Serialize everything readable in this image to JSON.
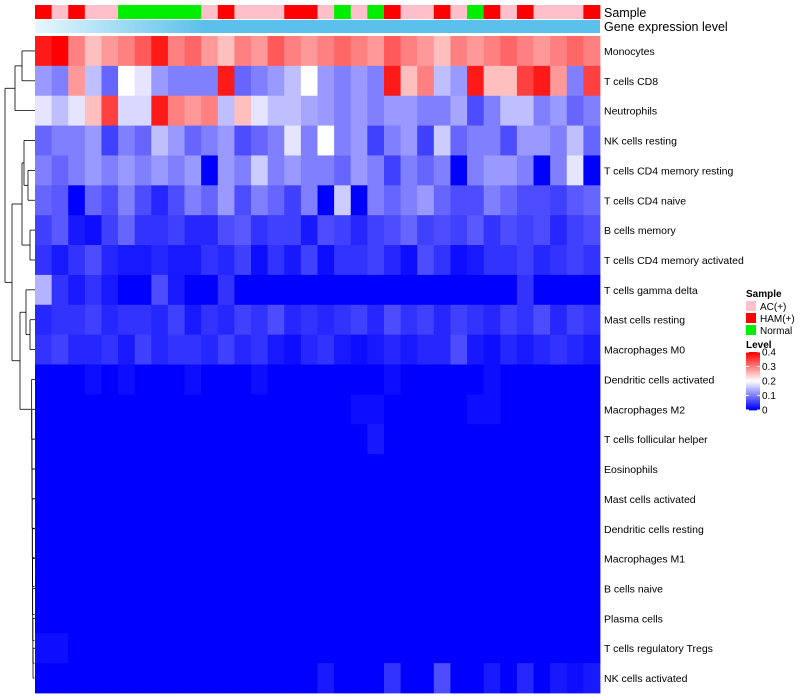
{
  "chart_data": {
    "type": "heatmap",
    "title": "",
    "column_annotation_labels": [
      "Sample",
      "Gene expression level"
    ],
    "row_labels": [
      "Monocytes",
      "T cells CD8",
      "Neutrophils",
      "NK cells resting",
      "T cells CD4 memory resting",
      "T cells CD4 naive",
      "B cells memory",
      "T cells CD4 memory activated",
      "T cells gamma delta",
      "Mast cells resting",
      "Macrophages M0",
      "Dendritic cells activated",
      "Macrophages M2",
      "T cells follicular helper",
      "Eosinophils",
      "Mast cells activated",
      "Dendritic cells resting",
      "Macrophages M1",
      "B cells naive",
      "Plasma cells",
      "T cells regulatory  Tregs",
      "NK cells activated"
    ],
    "sample_groups": [
      "HAM(+)",
      "AC(+)",
      "HAM(+)",
      "AC(+)",
      "AC(+)",
      "Normal",
      "Normal",
      "Normal",
      "Normal",
      "Normal",
      "AC(+)",
      "HAM(+)",
      "AC(+)",
      "AC(+)",
      "AC(+)",
      "HAM(+)",
      "HAM(+)",
      "AC(+)",
      "Normal",
      "AC(+)",
      "Normal",
      "HAM(+)",
      "AC(+)",
      "AC(+)",
      "HAM(+)",
      "AC(+)",
      "Normal",
      "HAM(+)",
      "AC(+)",
      "HAM(+)",
      "AC(+)",
      "AC(+)",
      "AC(+)",
      "HAM(+)"
    ],
    "values": [
      [
        0.38,
        0.4,
        0.3,
        0.25,
        0.28,
        0.3,
        0.33,
        0.38,
        0.3,
        0.32,
        0.28,
        0.25,
        0.3,
        0.28,
        0.33,
        0.3,
        0.28,
        0.3,
        0.32,
        0.3,
        0.28,
        0.33,
        0.3,
        0.28,
        0.25,
        0.3,
        0.28,
        0.3,
        0.32,
        0.3,
        0.28,
        0.3,
        0.32,
        0.3
      ],
      [
        0.12,
        0.1,
        0.28,
        0.15,
        0.08,
        0.2,
        0.18,
        0.12,
        0.1,
        0.1,
        0.1,
        0.38,
        0.08,
        0.1,
        0.12,
        0.15,
        0.2,
        0.12,
        0.1,
        0.12,
        0.1,
        0.38,
        0.25,
        0.3,
        0.15,
        0.12,
        0.38,
        0.25,
        0.25,
        0.35,
        0.38,
        0.28,
        0.1,
        0.35
      ],
      [
        0.18,
        0.15,
        0.18,
        0.25,
        0.35,
        0.17,
        0.17,
        0.38,
        0.3,
        0.28,
        0.3,
        0.15,
        0.25,
        0.18,
        0.15,
        0.15,
        0.13,
        0.12,
        0.1,
        0.12,
        0.1,
        0.12,
        0.12,
        0.1,
        0.1,
        0.13,
        0.06,
        0.1,
        0.15,
        0.15,
        0.1,
        0.12,
        0.08,
        0.1
      ],
      [
        0.08,
        0.1,
        0.1,
        0.12,
        0.05,
        0.1,
        0.08,
        0.15,
        0.12,
        0.08,
        0.1,
        0.12,
        0.06,
        0.08,
        0.1,
        0.18,
        0.1,
        0.2,
        0.1,
        0.12,
        0.05,
        0.1,
        0.12,
        0.05,
        0.16,
        0.08,
        0.1,
        0.1,
        0.06,
        0.12,
        0.12,
        0.1,
        0.15,
        0.08
      ],
      [
        0.1,
        0.08,
        0.1,
        0.12,
        0.1,
        0.12,
        0.1,
        0.12,
        0.1,
        0.12,
        0.0,
        0.12,
        0.1,
        0.16,
        0.1,
        0.12,
        0.1,
        0.1,
        0.08,
        0.12,
        0.1,
        0.05,
        0.1,
        0.08,
        0.1,
        0.0,
        0.1,
        0.12,
        0.12,
        0.1,
        0.0,
        0.1,
        0.18,
        0.0
      ],
      [
        0.08,
        0.07,
        0.0,
        0.08,
        0.06,
        0.1,
        0.06,
        0.03,
        0.06,
        0.1,
        0.08,
        0.12,
        0.06,
        0.1,
        0.08,
        0.05,
        0.1,
        0.0,
        0.16,
        0.0,
        0.1,
        0.08,
        0.1,
        0.12,
        0.08,
        0.06,
        0.06,
        0.1,
        0.08,
        0.06,
        0.06,
        0.05,
        0.07,
        0.08
      ],
      [
        0.05,
        0.07,
        0.02,
        0.01,
        0.05,
        0.08,
        0.04,
        0.04,
        0.05,
        0.03,
        0.03,
        0.06,
        0.07,
        0.04,
        0.05,
        0.05,
        0.02,
        0.06,
        0.05,
        0.03,
        0.05,
        0.06,
        0.08,
        0.05,
        0.06,
        0.05,
        0.07,
        0.04,
        0.06,
        0.05,
        0.06,
        0.03,
        0.05,
        0.06
      ],
      [
        0.04,
        0.02,
        0.04,
        0.06,
        0.03,
        0.02,
        0.02,
        0.03,
        0.02,
        0.02,
        0.04,
        0.03,
        0.05,
        0.01,
        0.04,
        0.02,
        0.05,
        0.01,
        0.04,
        0.04,
        0.05,
        0.03,
        0.01,
        0.06,
        0.04,
        0.01,
        0.02,
        0.04,
        0.04,
        0.05,
        0.03,
        0.04,
        0.05,
        0.04
      ],
      [
        0.14,
        0.04,
        0.02,
        0.04,
        0.02,
        0.0,
        0.0,
        0.06,
        0.02,
        0.0,
        0.0,
        0.04,
        0.0,
        0.0,
        0.0,
        0.0,
        0.0,
        0.0,
        0.0,
        0.0,
        0.0,
        0.0,
        0.0,
        0.0,
        0.0,
        0.0,
        0.0,
        0.0,
        0.0,
        0.04,
        0.0,
        0.0,
        0.0,
        0.0
      ],
      [
        0.03,
        0.04,
        0.04,
        0.05,
        0.03,
        0.04,
        0.04,
        0.03,
        0.05,
        0.02,
        0.04,
        0.03,
        0.05,
        0.04,
        0.06,
        0.03,
        0.04,
        0.03,
        0.04,
        0.05,
        0.03,
        0.06,
        0.04,
        0.05,
        0.03,
        0.05,
        0.04,
        0.03,
        0.05,
        0.04,
        0.06,
        0.03,
        0.05,
        0.04
      ],
      [
        0.04,
        0.05,
        0.03,
        0.03,
        0.04,
        0.02,
        0.05,
        0.03,
        0.04,
        0.04,
        0.03,
        0.05,
        0.03,
        0.04,
        0.02,
        0.01,
        0.03,
        0.04,
        0.02,
        0.01,
        0.02,
        0.03,
        0.02,
        0.03,
        0.03,
        0.06,
        0.02,
        0.01,
        0.03,
        0.02,
        0.03,
        0.04,
        0.03,
        0.02
      ],
      [
        0.0,
        0.0,
        0.0,
        0.01,
        0.0,
        0.01,
        0.0,
        0.0,
        0.0,
        0.01,
        0.0,
        0.0,
        0.0,
        0.01,
        0.0,
        0.0,
        0.0,
        0.0,
        0.0,
        0.0,
        0.0,
        0.01,
        0.0,
        0.0,
        0.0,
        0.0,
        0.0,
        0.01,
        0.0,
        0.0,
        0.0,
        0.0,
        0.0,
        0.0
      ],
      [
        0.0,
        0.0,
        0.0,
        0.0,
        0.0,
        0.0,
        0.0,
        0.0,
        0.0,
        0.0,
        0.0,
        0.0,
        0.0,
        0.0,
        0.0,
        0.0,
        0.0,
        0.0,
        0.0,
        0.01,
        0.01,
        0.0,
        0.0,
        0.0,
        0.0,
        0.0,
        0.01,
        0.01,
        0.0,
        0.0,
        0.0,
        0.0,
        0.0,
        0.0
      ],
      [
        0.0,
        0.0,
        0.0,
        0.0,
        0.0,
        0.0,
        0.0,
        0.0,
        0.0,
        0.0,
        0.0,
        0.0,
        0.0,
        0.0,
        0.0,
        0.0,
        0.0,
        0.0,
        0.0,
        0.0,
        0.02,
        0.0,
        0.0,
        0.0,
        0.0,
        0.0,
        0.0,
        0.0,
        0.0,
        0.0,
        0.0,
        0.0,
        0.0,
        0.0
      ],
      [
        0.0,
        0.0,
        0.0,
        0.0,
        0.0,
        0.0,
        0.0,
        0.0,
        0.0,
        0.0,
        0.0,
        0.0,
        0.0,
        0.0,
        0.0,
        0.0,
        0.0,
        0.0,
        0.0,
        0.0,
        0.0,
        0.0,
        0.0,
        0.0,
        0.0,
        0.0,
        0.0,
        0.0,
        0.0,
        0.0,
        0.0,
        0.0,
        0.0,
        0.0
      ],
      [
        0.0,
        0.0,
        0.0,
        0.0,
        0.0,
        0.0,
        0.0,
        0.0,
        0.0,
        0.0,
        0.0,
        0.0,
        0.0,
        0.0,
        0.0,
        0.0,
        0.0,
        0.0,
        0.0,
        0.0,
        0.0,
        0.0,
        0.0,
        0.0,
        0.0,
        0.0,
        0.0,
        0.0,
        0.0,
        0.0,
        0.0,
        0.0,
        0.0,
        0.0
      ],
      [
        0.0,
        0.0,
        0.0,
        0.0,
        0.0,
        0.0,
        0.0,
        0.0,
        0.0,
        0.0,
        0.0,
        0.0,
        0.0,
        0.0,
        0.0,
        0.0,
        0.0,
        0.0,
        0.0,
        0.0,
        0.0,
        0.0,
        0.0,
        0.0,
        0.0,
        0.0,
        0.0,
        0.0,
        0.0,
        0.0,
        0.0,
        0.0,
        0.0,
        0.0
      ],
      [
        0.0,
        0.0,
        0.0,
        0.0,
        0.0,
        0.0,
        0.0,
        0.0,
        0.0,
        0.0,
        0.0,
        0.0,
        0.0,
        0.0,
        0.0,
        0.0,
        0.0,
        0.0,
        0.0,
        0.0,
        0.0,
        0.0,
        0.0,
        0.0,
        0.0,
        0.0,
        0.0,
        0.0,
        0.0,
        0.0,
        0.0,
        0.0,
        0.0,
        0.0
      ],
      [
        0.0,
        0.0,
        0.0,
        0.0,
        0.0,
        0.0,
        0.0,
        0.0,
        0.0,
        0.0,
        0.0,
        0.0,
        0.0,
        0.0,
        0.0,
        0.0,
        0.0,
        0.0,
        0.0,
        0.0,
        0.0,
        0.0,
        0.0,
        0.0,
        0.0,
        0.0,
        0.0,
        0.0,
        0.0,
        0.0,
        0.0,
        0.0,
        0.0,
        0.0
      ],
      [
        0.0,
        0.0,
        0.0,
        0.0,
        0.0,
        0.0,
        0.0,
        0.0,
        0.0,
        0.0,
        0.0,
        0.0,
        0.0,
        0.0,
        0.0,
        0.0,
        0.0,
        0.0,
        0.0,
        0.0,
        0.0,
        0.0,
        0.0,
        0.0,
        0.0,
        0.0,
        0.0,
        0.0,
        0.0,
        0.0,
        0.0,
        0.0,
        0.0,
        0.0
      ],
      [
        0.01,
        0.01,
        0.0,
        0.0,
        0.0,
        0.0,
        0.0,
        0.0,
        0.0,
        0.0,
        0.0,
        0.0,
        0.0,
        0.0,
        0.0,
        0.0,
        0.0,
        0.0,
        0.0,
        0.0,
        0.0,
        0.0,
        0.0,
        0.0,
        0.0,
        0.0,
        0.0,
        0.0,
        0.0,
        0.0,
        0.0,
        0.0,
        0.0,
        0.0
      ],
      [
        0.0,
        0.0,
        0.0,
        0.0,
        0.0,
        0.0,
        0.0,
        0.0,
        0.0,
        0.0,
        0.0,
        0.0,
        0.0,
        0.0,
        0.0,
        0.0,
        0.0,
        0.02,
        0.0,
        0.0,
        0.0,
        0.04,
        0.0,
        0.0,
        0.06,
        0.0,
        0.0,
        0.02,
        0.0,
        0.03,
        0.0,
        0.02,
        0.01,
        0.02
      ]
    ],
    "color_scale": {
      "min": 0,
      "max": 0.4,
      "stops": [
        {
          "value": 0.0,
          "color": "#0000ff"
        },
        {
          "value": 0.2,
          "color": "#ffffff"
        },
        {
          "value": 0.4,
          "color": "#ff0000"
        }
      ]
    },
    "legends": {
      "sample": {
        "title": "Sample",
        "items": [
          {
            "label": "AC(+)",
            "color": "#ffc0cb"
          },
          {
            "label": "HAM(+)",
            "color": "#ff0000"
          },
          {
            "label": "Normal",
            "color": "#00ee00"
          }
        ]
      },
      "level": {
        "title": "Level",
        "ticks": [
          {
            "value": 0.4,
            "label": "0.4"
          },
          {
            "value": 0.3,
            "label": "0.3"
          },
          {
            "value": 0.2,
            "label": "0.2"
          },
          {
            "value": 0.1,
            "label": "0.1"
          },
          {
            "value": 0,
            "label": "0"
          }
        ]
      }
    },
    "gene_expression_color": "#5bc0eb",
    "gene_expression_fade_color": "#e8f7fd"
  }
}
